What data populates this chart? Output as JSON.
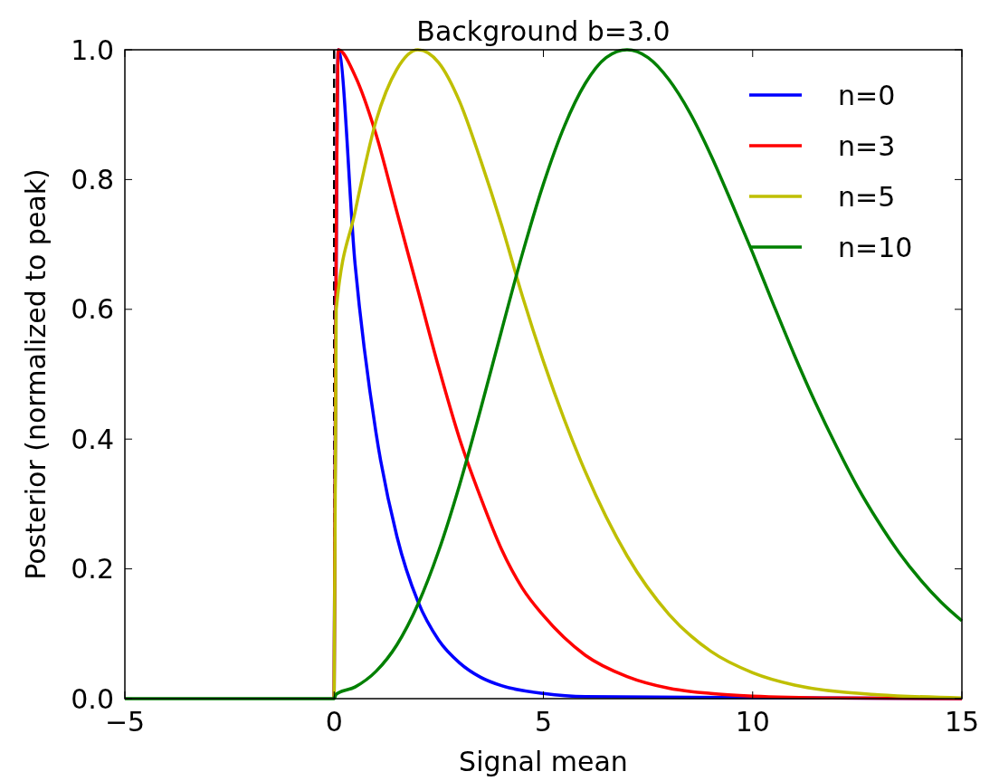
{
  "chart_data": {
    "type": "line",
    "title": "Background b=3.0",
    "xlabel": "Signal mean",
    "ylabel": "Posterior (normalized to peak)",
    "xlim": [
      -5,
      15
    ],
    "ylim": [
      0,
      1
    ],
    "xticks": [
      {
        "value": -5,
        "label": "−5"
      },
      0,
      5,
      10,
      15
    ],
    "yticks": [
      {
        "value": 0,
        "label": "0.0"
      },
      {
        "value": 0.2,
        "label": "0.2"
      },
      {
        "value": 0.4,
        "label": "0.4"
      },
      {
        "value": 0.6,
        "label": "0.6"
      },
      {
        "value": 0.8,
        "label": "0.8"
      },
      {
        "value": 1,
        "label": "1.0"
      }
    ],
    "grid": false,
    "legend": "top right",
    "marker": "none",
    "line_style": "solid",
    "ref_lines": [
      {
        "axis": "x",
        "value": 0,
        "color": "#000000",
        "line_style": "dashed"
      }
    ],
    "series": [
      {
        "name": "n=0",
        "color": "#0000ff",
        "x": [
          0,
          0.1,
          0.5,
          1,
          1.5,
          2,
          2.5,
          3,
          3.5,
          4,
          5,
          6,
          15
        ],
        "values": [
          0,
          1,
          0.67,
          0.41,
          0.25,
          0.15,
          0.09,
          0.055,
          0.033,
          0.02,
          0.008,
          0.003,
          0
        ]
      },
      {
        "name": "n=3",
        "color": "#ff0000",
        "x": [
          0,
          0.1,
          0.5,
          1,
          1.5,
          2,
          2.5,
          3,
          3.5,
          4,
          4.5,
          5,
          6,
          7,
          8,
          9,
          10,
          12,
          15
        ],
        "values": [
          0,
          1,
          0.96,
          0.87,
          0.75,
          0.63,
          0.51,
          0.4,
          0.31,
          0.23,
          0.17,
          0.128,
          0.067,
          0.034,
          0.016,
          0.008,
          0.004,
          0.001,
          0
        ]
      },
      {
        "name": "n=5",
        "color": "#bfbf00",
        "x": [
          0,
          0.05,
          0.5,
          1,
          1.5,
          2,
          2.5,
          3,
          3.5,
          4,
          4.5,
          5,
          5.5,
          6,
          7,
          8,
          9,
          10,
          11,
          12,
          13,
          15
        ],
        "values": [
          0,
          0.6,
          0.75,
          0.89,
          0.97,
          1,
          0.98,
          0.92,
          0.83,
          0.73,
          0.62,
          0.52,
          0.43,
          0.35,
          0.22,
          0.13,
          0.073,
          0.04,
          0.021,
          0.011,
          0.006,
          0.001
        ]
      },
      {
        "name": "n=10",
        "color": "#008000",
        "x": [
          -5,
          0,
          0.05,
          0.5,
          1,
          1.5,
          2,
          2.5,
          3,
          3.5,
          4,
          4.5,
          5,
          5.5,
          6,
          6.5,
          7,
          7.5,
          8,
          8.5,
          9,
          9.5,
          10,
          10.5,
          11,
          11.5,
          12,
          12.5,
          13,
          13.5,
          14,
          14.5,
          15
        ],
        "values": [
          0,
          0,
          0.007,
          0.018,
          0.042,
          0.083,
          0.145,
          0.228,
          0.33,
          0.446,
          0.567,
          0.686,
          0.793,
          0.882,
          0.948,
          0.988,
          1,
          0.988,
          0.954,
          0.903,
          0.838,
          0.764,
          0.687,
          0.607,
          0.529,
          0.456,
          0.389,
          0.327,
          0.273,
          0.225,
          0.184,
          0.149,
          0.12
        ]
      }
    ]
  }
}
